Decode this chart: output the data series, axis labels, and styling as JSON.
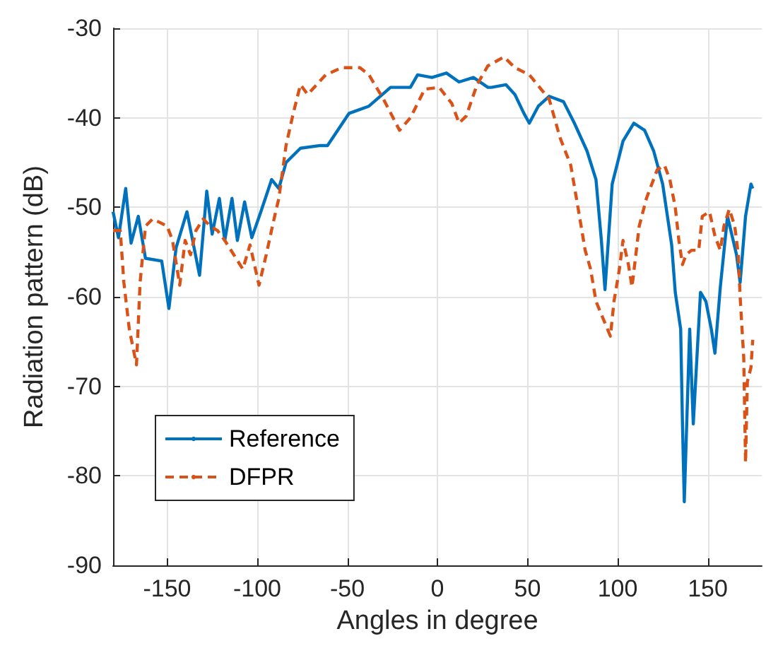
{
  "chart_data": {
    "type": "line",
    "xlabel": "Angles in degree",
    "ylabel": "Radiation pattern (dB)",
    "xlim": [
      -180,
      180
    ],
    "xticks": [
      -150,
      -100,
      -50,
      0,
      50,
      100,
      150
    ],
    "ylim": [
      -90,
      -30
    ],
    "yticks": [
      -90,
      -80,
      -70,
      -60,
      -50,
      -40,
      -30
    ],
    "grid": true,
    "legend": "bottom left",
    "marker": "none",
    "series": [
      {
        "name": "Reference",
        "color": "#0072bd",
        "line_style": "solid",
        "x": [
          -180,
          -177,
          -173,
          -170,
          -166,
          -162,
          -153,
          -149,
          -145,
          -139,
          -132,
          -128,
          -125,
          -121,
          -118,
          -114,
          -111,
          -107,
          -103,
          -98,
          -92,
          -88,
          -84,
          -76,
          -65,
          -61,
          -49,
          -38,
          -26,
          -15,
          -11,
          -3,
          5,
          12,
          20,
          28,
          30,
          38,
          43,
          48,
          51,
          56,
          62,
          70,
          76,
          83,
          88,
          91,
          93,
          97,
          103,
          109,
          115,
          120,
          125,
          130,
          132,
          135,
          136,
          137,
          140,
          142,
          146,
          149,
          152,
          154,
          157,
          161,
          166,
          168,
          171,
          174,
          175
        ],
        "values": [
          -50.5,
          -53.4,
          -47.9,
          -54,
          -51,
          -55.7,
          -56,
          -61.3,
          -54.5,
          -50.5,
          -57.6,
          -48.2,
          -53,
          -49,
          -53.7,
          -49,
          -53.7,
          -49.4,
          -53.4,
          -50.5,
          -46.9,
          -47.9,
          -45,
          -43.4,
          -43.1,
          -43.1,
          -39.5,
          -38.7,
          -36.6,
          -36.6,
          -35.2,
          -35.5,
          -35,
          -36,
          -35.5,
          -36.6,
          -36.6,
          -36.3,
          -37.4,
          -39.5,
          -40.6,
          -38.7,
          -37.6,
          -38.2,
          -40.6,
          -43.7,
          -46.9,
          -53.7,
          -59.2,
          -47.4,
          -42.6,
          -40.6,
          -41.4,
          -43.7,
          -47.4,
          -54.2,
          -59.5,
          -63.6,
          -74.2,
          -82.9,
          -63.6,
          -74.2,
          -59.5,
          -60.5,
          -63.6,
          -66.3,
          -58.9,
          -51,
          -55.3,
          -58.4,
          -51,
          -47.4,
          -47.9
        ]
      },
      {
        "name": "DFPR",
        "color": "#d95319",
        "line_style": "dashed",
        "x": [
          -180,
          -176,
          -174,
          -171,
          -167,
          -165,
          -162,
          -158,
          -150,
          -147,
          -143,
          -140,
          -137,
          -134,
          -130,
          -126,
          -122,
          -118,
          -108,
          -104,
          -99,
          -95,
          -91,
          -88,
          -84,
          -80,
          -76,
          -72,
          -62,
          -53,
          -43,
          -38,
          -30,
          -21,
          -15,
          -7,
          1,
          8,
          12,
          16,
          22,
          28,
          37,
          43,
          51,
          62,
          68,
          74,
          78,
          82,
          85,
          88,
          96,
          98,
          101,
          103,
          106,
          108,
          112,
          116,
          122,
          126,
          129,
          132,
          134,
          136,
          138,
          141,
          145,
          147,
          151,
          154,
          157,
          159,
          162,
          165,
          167,
          168,
          170,
          171,
          172,
          174,
          175
        ],
        "values": [
          -52.6,
          -52.6,
          -58.4,
          -63.6,
          -67.6,
          -58.4,
          -52.1,
          -51.3,
          -52.1,
          -53.7,
          -58.7,
          -53.7,
          -55.3,
          -52.6,
          -51.3,
          -52.1,
          -52.6,
          -53.7,
          -56.9,
          -54.2,
          -58.7,
          -55.3,
          -51.6,
          -49,
          -43.1,
          -39.5,
          -36.3,
          -37.4,
          -35.2,
          -34.4,
          -34.4,
          -35.2,
          -37.9,
          -41.4,
          -40,
          -36.8,
          -36.6,
          -38.4,
          -40.6,
          -39.8,
          -36.3,
          -34.2,
          -33.2,
          -34.4,
          -35.2,
          -37.9,
          -42.2,
          -45.3,
          -50,
          -54.8,
          -56.9,
          -60.5,
          -64.4,
          -60.5,
          -56.9,
          -53.7,
          -56.4,
          -58.9,
          -52.1,
          -49,
          -45.8,
          -45.3,
          -46.9,
          -50,
          -53.7,
          -56.4,
          -55.3,
          -54.8,
          -54.8,
          -51,
          -50.5,
          -53.2,
          -54.8,
          -52.1,
          -50.2,
          -52.1,
          -55.3,
          -60,
          -66.8,
          -78.5,
          -69.5,
          -67.9,
          -64.8
        ]
      }
    ]
  }
}
